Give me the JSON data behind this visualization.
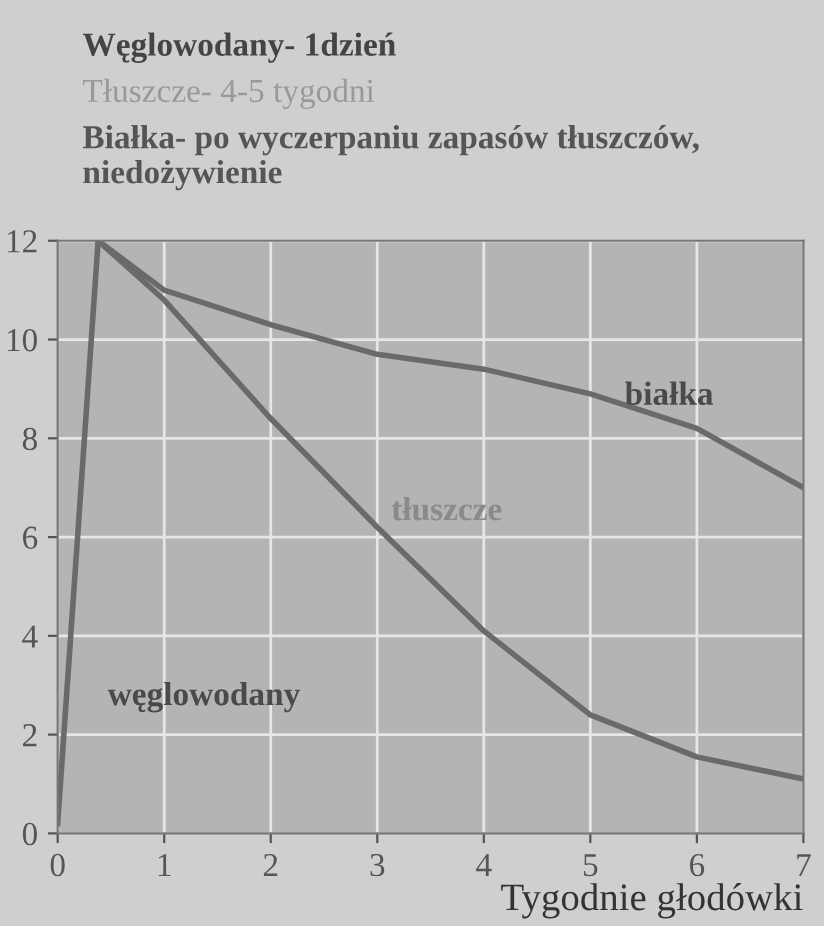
{
  "chart_data": {
    "type": "line",
    "title": "Węglowodany- 1dzień",
    "subtitle": "Tłuszcze- 4-5 tygodni",
    "annotations": [
      "Białka- po wyczerpaniu zapasów tłuszczów,  niedożywienie"
    ],
    "xlabel": "Tygodnie głodówki",
    "series": [
      {
        "name": "białka",
        "color": "#6a6a6a",
        "x": [
          0.38,
          1,
          2,
          3,
          4,
          5,
          6,
          7
        ],
        "values": [
          12,
          11.0,
          10.3,
          9.7,
          9.4,
          8.9,
          8.2,
          7.0
        ]
      },
      {
        "name": "tłuszcze",
        "color": "#6a6a6a",
        "x": [
          0.38,
          1,
          2,
          3,
          4,
          5,
          6,
          7
        ],
        "values": [
          12,
          10.8,
          8.4,
          6.2,
          4.1,
          2.4,
          1.55,
          1.1
        ]
      },
      {
        "name": "węglowodany",
        "color": "#6a6a6a",
        "x": [
          0,
          0.38
        ],
        "values": [
          0.2,
          12
        ]
      }
    ],
    "xlim": [
      0,
      7
    ],
    "ylim": [
      0,
      12
    ],
    "xticks": [
      0,
      1,
      2,
      3,
      4,
      5,
      6,
      7
    ],
    "yticks": [
      0,
      2,
      4,
      6,
      8,
      10,
      12
    ],
    "grid": true,
    "legend": false
  }
}
